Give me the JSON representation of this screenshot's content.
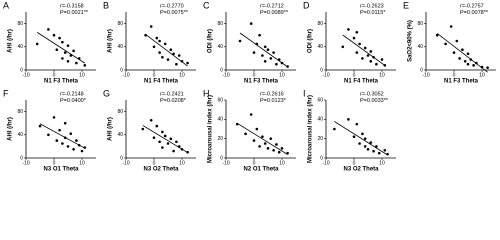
{
  "chart_data": [
    {
      "type": "scatter",
      "panel": "A",
      "x_label": "N1 F3 Theta",
      "y_label": "AHI (/hr)",
      "annotation": [
        "r=-0.3158",
        "P=0.0021**"
      ],
      "color": "#000000",
      "xlim": [
        -10,
        15
      ],
      "xticks": [
        -10,
        0,
        10
      ],
      "ylim": [
        0,
        100
      ],
      "yticks": [
        0,
        40,
        80
      ],
      "x": [
        -6,
        -2,
        0,
        1,
        2,
        3,
        3,
        4,
        5,
        5,
        6,
        7,
        8,
        9,
        11
      ],
      "values": [
        45,
        70,
        60,
        35,
        55,
        20,
        48,
        30,
        42,
        15,
        25,
        33,
        12,
        20,
        8
      ]
    },
    {
      "type": "scatter",
      "panel": "B",
      "x_label": "N1 F4 Theta",
      "y_label": "AHI (/hr)",
      "annotation": [
        "r=-0.2770",
        "P=0.0075**"
      ],
      "color": "#000000",
      "xlim": [
        -10,
        15
      ],
      "xticks": [
        -10,
        0,
        10
      ],
      "ylim": [
        0,
        100
      ],
      "yticks": [
        0,
        40,
        80
      ],
      "x": [
        -3,
        -1,
        0,
        1,
        2,
        2,
        3,
        4,
        5,
        6,
        7,
        8,
        9,
        10,
        12
      ],
      "values": [
        60,
        75,
        40,
        55,
        30,
        50,
        22,
        45,
        18,
        35,
        28,
        10,
        25,
        15,
        12
      ]
    },
    {
      "type": "scatter",
      "panel": "C",
      "x_label": "N1 F3 Theta",
      "y_label": "ODI (/hr)",
      "annotation": [
        "r=-0.2712",
        "P=0.0089**"
      ],
      "color": "#000000",
      "xlim": [
        -10,
        15
      ],
      "xticks": [
        -10,
        0,
        10
      ],
      "ylim": [
        0,
        100
      ],
      "yticks": [
        0,
        40,
        80
      ],
      "x": [
        -5,
        -1,
        0,
        1,
        2,
        3,
        4,
        4,
        5,
        6,
        7,
        8,
        9,
        10,
        12
      ],
      "values": [
        50,
        80,
        30,
        45,
        60,
        25,
        40,
        15,
        35,
        20,
        30,
        10,
        18,
        12,
        6
      ]
    },
    {
      "type": "scatter",
      "panel": "D",
      "x_label": "N1 F4 Theta",
      "y_label": "ODI (/hr)",
      "annotation": [
        "r=-0.2623",
        "P=0.0115*"
      ],
      "color": "#000000",
      "xlim": [
        -10,
        15
      ],
      "xticks": [
        -10,
        0,
        10
      ],
      "ylim": [
        0,
        100
      ],
      "yticks": [
        0,
        40,
        80
      ],
      "x": [
        -4,
        -2,
        0,
        1,
        1,
        2,
        3,
        4,
        5,
        6,
        6,
        7,
        8,
        10,
        11
      ],
      "values": [
        40,
        70,
        55,
        30,
        65,
        45,
        20,
        38,
        25,
        32,
        15,
        22,
        10,
        18,
        8
      ]
    },
    {
      "type": "scatter",
      "panel": "E",
      "x_label": "N1 F3 Theta",
      "y_label": "SaO2<90% (%)",
      "annotation": [
        "r=-0.2757",
        "P=0.0078**"
      ],
      "color": "#000000",
      "xlim": [
        -10,
        15
      ],
      "xticks": [
        -10,
        0,
        10
      ],
      "ylim": [
        0,
        100
      ],
      "yticks": [
        0,
        40,
        80
      ],
      "x": [
        -6,
        -3,
        -1,
        0,
        1,
        2,
        3,
        4,
        5,
        5,
        6,
        7,
        8,
        10,
        12
      ],
      "values": [
        60,
        45,
        75,
        30,
        50,
        20,
        35,
        15,
        28,
        10,
        18,
        8,
        12,
        5,
        4
      ]
    },
    {
      "type": "scatter",
      "panel": "F",
      "x_label": "N3 O1 Theta",
      "y_label": "AHI (/hr)",
      "annotation": [
        "r=-0.2148",
        "P=0.0400*"
      ],
      "color": "#000000",
      "xlim": [
        -10,
        15
      ],
      "xticks": [
        -10,
        0,
        10
      ],
      "ylim": [
        0,
        100
      ],
      "yticks": [
        0,
        40,
        80
      ],
      "x": [
        -5,
        -2,
        0,
        1,
        2,
        3,
        4,
        4,
        5,
        6,
        7,
        8,
        9,
        10,
        11
      ],
      "values": [
        55,
        40,
        70,
        30,
        48,
        25,
        60,
        35,
        20,
        42,
        15,
        30,
        22,
        12,
        18
      ]
    },
    {
      "type": "scatter",
      "panel": "G",
      "x_label": "N3 O2 Theta",
      "y_label": "AHI (/hr)",
      "annotation": [
        "r=-0.2421",
        "P=0.0208*"
      ],
      "color": "#000000",
      "xlim": [
        -10,
        15
      ],
      "xticks": [
        -10,
        0,
        10
      ],
      "ylim": [
        0,
        100
      ],
      "yticks": [
        0,
        40,
        80
      ],
      "x": [
        -4,
        -1,
        0,
        1,
        2,
        3,
        3,
        4,
        5,
        6,
        7,
        8,
        9,
        10,
        12
      ],
      "values": [
        50,
        65,
        35,
        55,
        28,
        45,
        18,
        38,
        25,
        33,
        12,
        28,
        20,
        15,
        10
      ]
    },
    {
      "type": "scatter",
      "panel": "H",
      "x_label": "N2 O1 Theta",
      "y_label": "Microarousal index (/hr)",
      "annotation": [
        "r=-0.2616",
        "P=0.0123*"
      ],
      "color": "#000000",
      "xlim": [
        -10,
        15
      ],
      "xticks": [
        -10,
        0,
        10
      ],
      "ylim": [
        0,
        60
      ],
      "yticks": [
        0,
        20,
        40,
        60
      ],
      "x": [
        -6,
        -3,
        -1,
        0,
        1,
        2,
        3,
        4,
        5,
        6,
        7,
        8,
        9,
        10,
        12
      ],
      "values": [
        35,
        25,
        45,
        18,
        30,
        12,
        22,
        15,
        10,
        20,
        8,
        14,
        6,
        10,
        5
      ]
    },
    {
      "type": "scatter",
      "panel": "I",
      "x_label": "N3 O2 Theta",
      "y_label": "Microarousal index (/hr)",
      "annotation": [
        "r=-0.3052",
        "P=0.0033**"
      ],
      "color": "#000000",
      "xlim": [
        -10,
        15
      ],
      "xticks": [
        -10,
        0,
        10
      ],
      "ylim": [
        0,
        60
      ],
      "yticks": [
        0,
        20,
        40,
        60
      ],
      "x": [
        -7,
        -2,
        0,
        1,
        2,
        3,
        4,
        4,
        5,
        6,
        7,
        8,
        9,
        11,
        12
      ],
      "values": [
        30,
        40,
        22,
        35,
        15,
        25,
        12,
        20,
        9,
        16,
        7,
        12,
        5,
        8,
        4
      ]
    }
  ]
}
